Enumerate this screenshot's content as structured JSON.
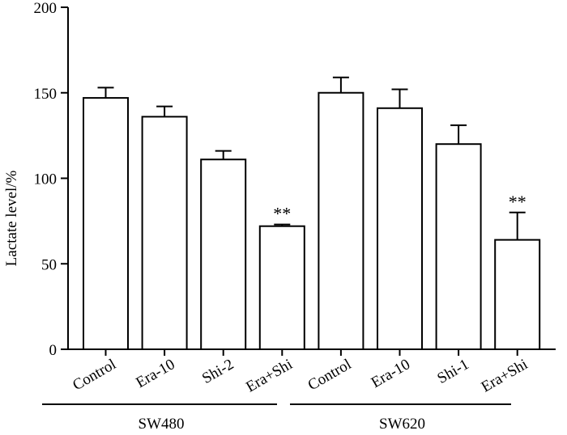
{
  "chart_data": {
    "type": "bar",
    "title": "",
    "xlabel": "",
    "ylabel": "Lactate level/%",
    "ylim": [
      0,
      200
    ],
    "yticks": [
      0,
      50,
      100,
      150,
      200
    ],
    "grid": false,
    "groups": [
      {
        "name": "SW480",
        "categories": [
          "Control",
          "Era-10",
          "Shi-2",
          "Era+Shi"
        ]
      },
      {
        "name": "SW620",
        "categories": [
          "Control",
          "Era-10",
          "Shi-1",
          "Era+Shi"
        ]
      }
    ],
    "categories": [
      "Control",
      "Era-10",
      "Shi-2",
      "Era+Shi",
      "Control",
      "Era-10",
      "Shi-1",
      "Era+Shi"
    ],
    "values": [
      147,
      136,
      111,
      72,
      150,
      141,
      120,
      64
    ],
    "errors": [
      6,
      6,
      5,
      1,
      9,
      11,
      11,
      16
    ],
    "annotations": [
      "",
      "",
      "",
      "**",
      "",
      "",
      "",
      "**"
    ]
  },
  "colors": {
    "bar_fill": "#ffffff",
    "stroke": "#000000"
  }
}
